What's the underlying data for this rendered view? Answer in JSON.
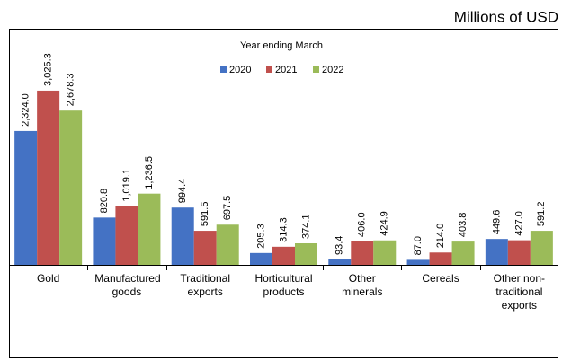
{
  "chart_data": {
    "type": "bar",
    "subtitle": "Millions of USD",
    "legend_title": "Year ending March",
    "categories": [
      "Gold",
      "Manufactured goods",
      "Traditional exports",
      "Horticultural products",
      "Other minerals",
      "Cereals",
      "Other non-traditional exports"
    ],
    "series": [
      {
        "name": "2020",
        "color": "#4472c4",
        "values": [
          2324.0,
          820.8,
          994.4,
          205.3,
          93.4,
          87.0,
          449.6
        ],
        "value_labels": [
          "2,324.0",
          "820.8",
          "994.4",
          "205.3",
          "93.4",
          "87.0",
          "449.6"
        ]
      },
      {
        "name": "2021",
        "color": "#c0504d",
        "values": [
          3025.3,
          1019.1,
          591.5,
          314.3,
          406.0,
          214.0,
          427.0
        ],
        "value_labels": [
          "3,025.3",
          "1,019.1",
          "591.5",
          "314.3",
          "406.0",
          "214.0",
          "427.0"
        ]
      },
      {
        "name": "2022",
        "color": "#9bbb59",
        "values": [
          2678.3,
          1236.5,
          697.5,
          374.1,
          424.9,
          403.8,
          591.2
        ],
        "value_labels": [
          "2,678.3",
          "1,236.5",
          "697.5",
          "374.1",
          "424.9",
          "403.8",
          "591.2"
        ]
      }
    ],
    "ylim": [
      0,
      4100
    ]
  }
}
